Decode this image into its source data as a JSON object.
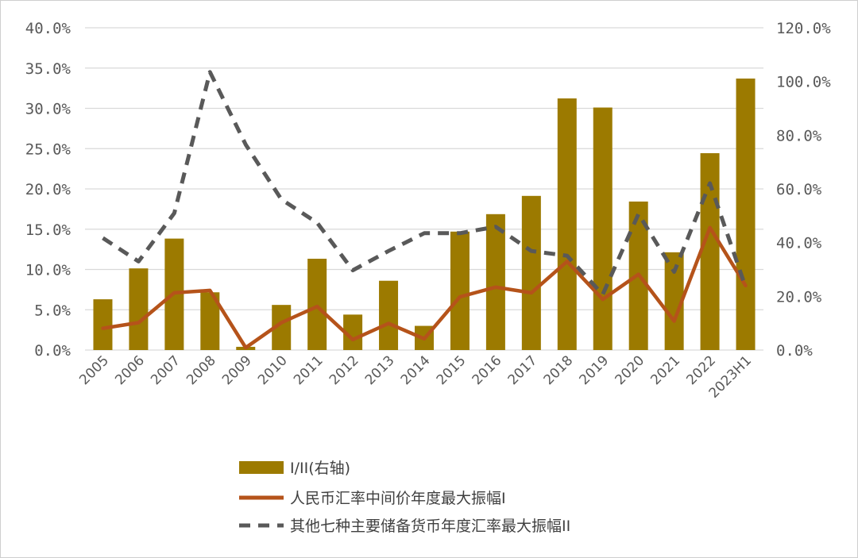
{
  "chart_data": {
    "type": "bar+line",
    "categories": [
      "2005",
      "2006",
      "2007",
      "2008",
      "2009",
      "2010",
      "2011",
      "2012",
      "2013",
      "2014",
      "2015",
      "2016",
      "2017",
      "2018",
      "2019",
      "2020",
      "2021",
      "2022",
      "2023H1"
    ],
    "left_axis": {
      "ylim": [
        0,
        40
      ],
      "ticks": [
        "0.0%",
        "5.0%",
        "10.0%",
        "15.0%",
        "20.0%",
        "25.0%",
        "30.0%",
        "35.0%",
        "40.0%"
      ]
    },
    "right_axis": {
      "ylim": [
        0,
        120
      ],
      "ticks": [
        "0.0%",
        "20.0%",
        "40.0%",
        "60.0%",
        "80.0%",
        "100.0%",
        "120.0%"
      ]
    },
    "grid": true,
    "legend_position": "bottom",
    "series": [
      {
        "name": "I/II(右轴)",
        "kind": "bar",
        "axis": "right",
        "color": "#9C7A00",
        "values": [
          18.9,
          30.4,
          41.5,
          21.5,
          1.2,
          16.8,
          34.0,
          13.2,
          25.8,
          9.0,
          44.1,
          50.6,
          57.4,
          93.7,
          90.3,
          55.3,
          36.4,
          73.3,
          101.1
        ]
      },
      {
        "name": "人民币汇率中间价年度最大振幅I",
        "kind": "line",
        "axis": "left",
        "color": "#B5531A",
        "values": [
          2.7,
          3.4,
          7.1,
          7.4,
          0.3,
          3.4,
          5.4,
          1.3,
          3.3,
          1.4,
          6.6,
          7.8,
          7.1,
          11.0,
          6.3,
          9.4,
          3.6,
          15.2,
          8.0
        ]
      },
      {
        "name": "其他七种主要储备货币年度汇率最大振幅II",
        "kind": "line",
        "axis": "left",
        "style": "dashed",
        "color": "#595959",
        "values": [
          13.9,
          11.0,
          17.0,
          34.5,
          25.5,
          18.7,
          15.8,
          9.9,
          12.3,
          14.5,
          14.5,
          15.3,
          12.3,
          11.7,
          6.9,
          16.9,
          9.7,
          20.7,
          7.8
        ]
      }
    ]
  }
}
